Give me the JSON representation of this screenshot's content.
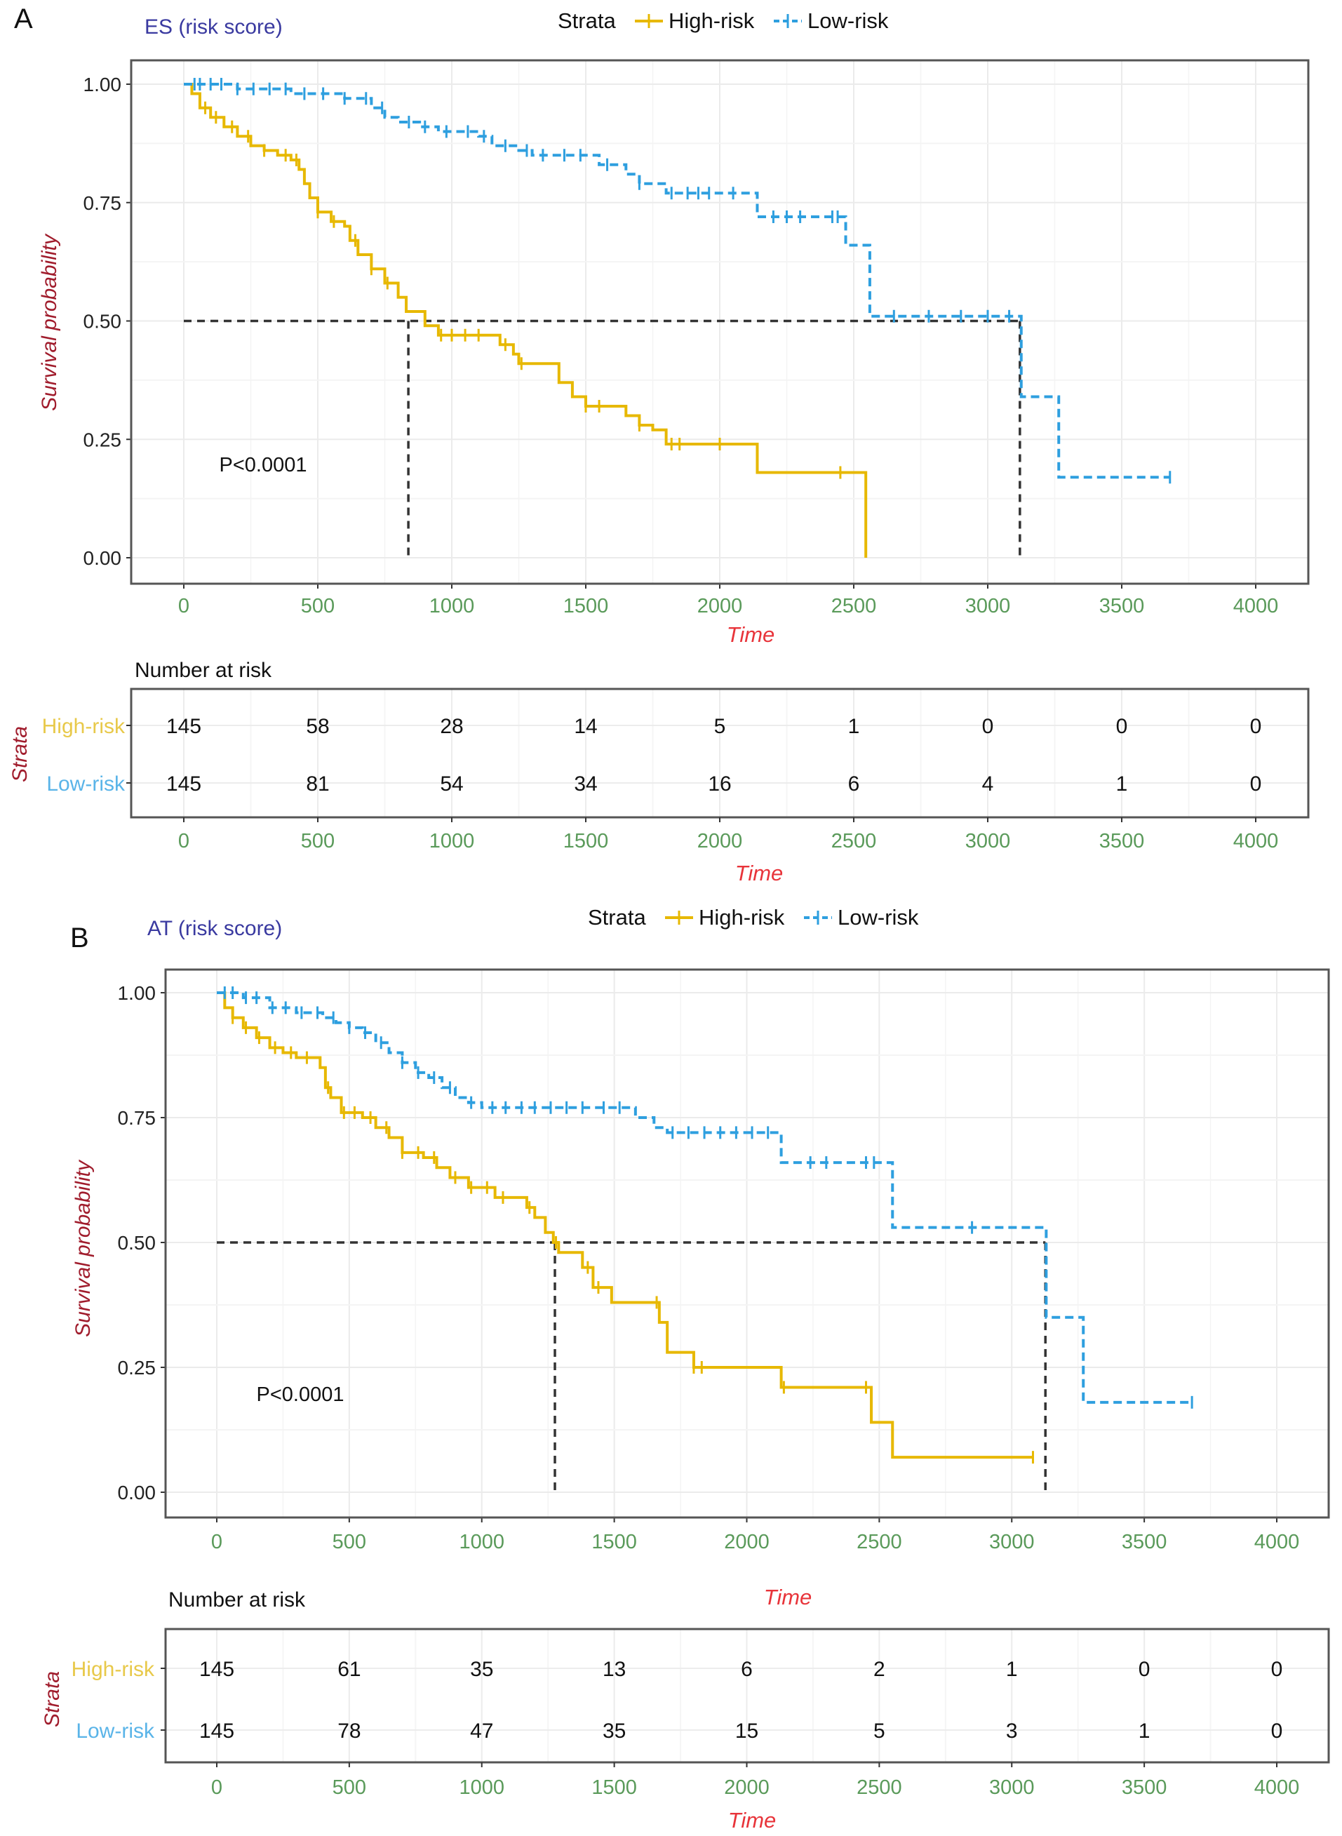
{
  "colors": {
    "high_risk": "#E7B800",
    "low_risk": "#2E9FDF",
    "high_risk_label": "#E8C94A",
    "low_risk_label": "#5AB4E8",
    "title": "#3A3AA0",
    "axis_x_ticks": "#5A9A5A",
    "axis_x_label": "#E8343A",
    "axis_y_label": "#A01C2C",
    "median_line": "#333333"
  },
  "chart_data": [
    {
      "type": "line",
      "subtype": "kaplan-meier",
      "panel_letter": "A",
      "title": "ES (risk score)",
      "legend": {
        "title": "Strata",
        "placement": "top",
        "entries": [
          "High-risk",
          "Low-risk"
        ]
      },
      "xlabel": "Time",
      "ylabel": "Survival probability",
      "xlim": [
        0,
        4000
      ],
      "ylim": [
        0,
        1
      ],
      "x_ticks": [
        "0",
        "500",
        "1000",
        "1500",
        "2000",
        "2500",
        "3000",
        "3500",
        "4000"
      ],
      "y_ticks": [
        "0.00",
        "0.25",
        "0.50",
        "0.75",
        "1.00"
      ],
      "grid": true,
      "p_value": "P<0.0001",
      "median_survival": {
        "High-risk": 838,
        "Low-risk": 3120
      },
      "series": [
        {
          "name": "High-risk",
          "line_style": "solid",
          "steps": [
            [
              0,
              1.0
            ],
            [
              30,
              0.98
            ],
            [
              60,
              0.95
            ],
            [
              100,
              0.93
            ],
            [
              150,
              0.91
            ],
            [
              200,
              0.89
            ],
            [
              250,
              0.87
            ],
            [
              300,
              0.86
            ],
            [
              350,
              0.85
            ],
            [
              400,
              0.84
            ],
            [
              430,
              0.82
            ],
            [
              450,
              0.79
            ],
            [
              470,
              0.76
            ],
            [
              500,
              0.73
            ],
            [
              550,
              0.71
            ],
            [
              600,
              0.7
            ],
            [
              620,
              0.67
            ],
            [
              650,
              0.64
            ],
            [
              700,
              0.61
            ],
            [
              750,
              0.58
            ],
            [
              800,
              0.55
            ],
            [
              830,
              0.52
            ],
            [
              880,
              0.52
            ],
            [
              900,
              0.49
            ],
            [
              950,
              0.47
            ],
            [
              1150,
              0.47
            ],
            [
              1180,
              0.45
            ],
            [
              1230,
              0.43
            ],
            [
              1250,
              0.41
            ],
            [
              1380,
              0.41
            ],
            [
              1400,
              0.37
            ],
            [
              1450,
              0.34
            ],
            [
              1500,
              0.32
            ],
            [
              1650,
              0.3
            ],
            [
              1700,
              0.28
            ],
            [
              1750,
              0.27
            ],
            [
              1800,
              0.24
            ],
            [
              2130,
              0.24
            ],
            [
              2140,
              0.18
            ],
            [
              2540,
              0.18
            ],
            [
              2545,
              0.0
            ]
          ],
          "censor_times": [
            80,
            120,
            180,
            240,
            300,
            380,
            420,
            500,
            560,
            640,
            700,
            760,
            960,
            1000,
            1050,
            1100,
            1200,
            1260,
            1500,
            1550,
            1700,
            1820,
            1850,
            2000,
            2450
          ]
        },
        {
          "name": "Low-risk",
          "line_style": "dashed",
          "steps": [
            [
              0,
              1.0
            ],
            [
              200,
              0.99
            ],
            [
              400,
              0.98
            ],
            [
              600,
              0.97
            ],
            [
              700,
              0.95
            ],
            [
              750,
              0.93
            ],
            [
              800,
              0.92
            ],
            [
              880,
              0.91
            ],
            [
              950,
              0.9
            ],
            [
              1100,
              0.89
            ],
            [
              1150,
              0.87
            ],
            [
              1250,
              0.86
            ],
            [
              1300,
              0.85
            ],
            [
              1500,
              0.85
            ],
            [
              1550,
              0.83
            ],
            [
              1650,
              0.81
            ],
            [
              1700,
              0.79
            ],
            [
              1800,
              0.77
            ],
            [
              2130,
              0.77
            ],
            [
              2140,
              0.72
            ],
            [
              2460,
              0.72
            ],
            [
              2470,
              0.66
            ],
            [
              2550,
              0.66
            ],
            [
              2560,
              0.51
            ],
            [
              3120,
              0.51
            ],
            [
              3125,
              0.34
            ],
            [
              3260,
              0.34
            ],
            [
              3265,
              0.17
            ],
            [
              3680,
              0.17
            ]
          ],
          "censor_times": [
            40,
            60,
            100,
            140,
            200,
            260,
            320,
            380,
            450,
            520,
            600,
            680,
            740,
            840,
            900,
            980,
            1060,
            1120,
            1200,
            1280,
            1340,
            1420,
            1480,
            1580,
            1700,
            1820,
            1880,
            1920,
            1960,
            2050,
            2200,
            2250,
            2300,
            2420,
            2440,
            2650,
            2780,
            2900,
            3000,
            3080,
            3680
          ]
        }
      ],
      "risk_table": {
        "title": "Number at risk",
        "row_axis_label": "Strata",
        "xlabel": "Time",
        "times": [
          0,
          500,
          1000,
          1500,
          2000,
          2500,
          3000,
          3500,
          4000
        ],
        "x_ticks": [
          "0",
          "500",
          "1000",
          "1500",
          "2000",
          "2500",
          "3000",
          "3500",
          "4000"
        ],
        "rows": [
          {
            "label": "High-risk",
            "values": [
              145,
              58,
              28,
              14,
              5,
              1,
              0,
              0,
              0
            ]
          },
          {
            "label": "Low-risk",
            "values": [
              145,
              81,
              54,
              34,
              16,
              6,
              4,
              1,
              0
            ]
          }
        ]
      }
    },
    {
      "type": "line",
      "subtype": "kaplan-meier",
      "panel_letter": "B",
      "title": "AT (risk score)",
      "legend": {
        "title": "Strata",
        "placement": "top",
        "entries": [
          "High-risk",
          "Low-risk"
        ]
      },
      "xlabel": "Time",
      "ylabel": "Survival probability",
      "xlim": [
        0,
        4000
      ],
      "ylim": [
        0,
        1
      ],
      "x_ticks": [
        "0",
        "500",
        "1000",
        "1500",
        "2000",
        "2500",
        "3000",
        "3500",
        "4000"
      ],
      "y_ticks": [
        "0.00",
        "0.25",
        "0.50",
        "0.75",
        "1.00"
      ],
      "grid": true,
      "p_value": "P<0.0001",
      "median_survival": {
        "High-risk": 1276,
        "Low-risk": 3127
      },
      "series": [
        {
          "name": "High-risk",
          "line_style": "solid",
          "steps": [
            [
              0,
              1.0
            ],
            [
              30,
              0.97
            ],
            [
              60,
              0.95
            ],
            [
              100,
              0.93
            ],
            [
              150,
              0.91
            ],
            [
              200,
              0.89
            ],
            [
              250,
              0.88
            ],
            [
              300,
              0.87
            ],
            [
              350,
              0.87
            ],
            [
              390,
              0.85
            ],
            [
              410,
              0.81
            ],
            [
              430,
              0.79
            ],
            [
              470,
              0.76
            ],
            [
              550,
              0.75
            ],
            [
              600,
              0.73
            ],
            [
              650,
              0.71
            ],
            [
              700,
              0.68
            ],
            [
              780,
              0.67
            ],
            [
              830,
              0.65
            ],
            [
              880,
              0.63
            ],
            [
              950,
              0.61
            ],
            [
              1050,
              0.59
            ],
            [
              1150,
              0.59
            ],
            [
              1170,
              0.57
            ],
            [
              1200,
              0.55
            ],
            [
              1240,
              0.52
            ],
            [
              1270,
              0.5
            ],
            [
              1290,
              0.48
            ],
            [
              1360,
              0.48
            ],
            [
              1380,
              0.45
            ],
            [
              1420,
              0.41
            ],
            [
              1480,
              0.41
            ],
            [
              1490,
              0.38
            ],
            [
              1650,
              0.38
            ],
            [
              1670,
              0.34
            ],
            [
              1700,
              0.28
            ],
            [
              1790,
              0.28
            ],
            [
              1800,
              0.25
            ],
            [
              2120,
              0.25
            ],
            [
              2130,
              0.21
            ],
            [
              2460,
              0.21
            ],
            [
              2470,
              0.14
            ],
            [
              2540,
              0.14
            ],
            [
              2550,
              0.07
            ],
            [
              3080,
              0.07
            ]
          ],
          "censor_times": [
            60,
            110,
            160,
            220,
            280,
            340,
            420,
            480,
            520,
            580,
            640,
            700,
            760,
            820,
            900,
            960,
            1020,
            1080,
            1180,
            1280,
            1400,
            1440,
            1660,
            1800,
            1830,
            2140,
            2450,
            3080
          ]
        },
        {
          "name": "Low-risk",
          "line_style": "dashed",
          "steps": [
            [
              0,
              1.0
            ],
            [
              100,
              0.99
            ],
            [
              200,
              0.97
            ],
            [
              300,
              0.96
            ],
            [
              400,
              0.95
            ],
            [
              450,
              0.94
            ],
            [
              500,
              0.93
            ],
            [
              550,
              0.92
            ],
            [
              600,
              0.9
            ],
            [
              650,
              0.88
            ],
            [
              700,
              0.86
            ],
            [
              750,
              0.84
            ],
            [
              800,
              0.83
            ],
            [
              850,
              0.81
            ],
            [
              900,
              0.79
            ],
            [
              950,
              0.78
            ],
            [
              1000,
              0.77
            ],
            [
              1550,
              0.77
            ],
            [
              1580,
              0.75
            ],
            [
              1650,
              0.73
            ],
            [
              1700,
              0.72
            ],
            [
              2120,
              0.72
            ],
            [
              2130,
              0.66
            ],
            [
              2540,
              0.66
            ],
            [
              2550,
              0.53
            ],
            [
              3120,
              0.53
            ],
            [
              3130,
              0.35
            ],
            [
              3260,
              0.35
            ],
            [
              3270,
              0.18
            ],
            [
              3680,
              0.18
            ]
          ],
          "censor_times": [
            30,
            60,
            110,
            150,
            210,
            260,
            320,
            380,
            440,
            500,
            560,
            620,
            700,
            760,
            820,
            880,
            960,
            1040,
            1090,
            1150,
            1200,
            1260,
            1320,
            1380,
            1460,
            1520,
            1720,
            1780,
            1840,
            1900,
            1960,
            2020,
            2080,
            2240,
            2300,
            2450,
            2480,
            2850,
            3680
          ]
        }
      ],
      "risk_table": {
        "title": "Number at risk",
        "row_axis_label": "Strata",
        "xlabel": "Time",
        "times": [
          0,
          500,
          1000,
          1500,
          2000,
          2500,
          3000,
          3500,
          4000
        ],
        "x_ticks": [
          "0",
          "500",
          "1000",
          "1500",
          "2000",
          "2500",
          "3000",
          "3500",
          "4000"
        ],
        "rows": [
          {
            "label": "High-risk",
            "values": [
              145,
              61,
              35,
              13,
              6,
              2,
              1,
              0,
              0
            ]
          },
          {
            "label": "Low-risk",
            "values": [
              145,
              78,
              47,
              35,
              15,
              5,
              3,
              1,
              0
            ]
          }
        ]
      }
    }
  ]
}
